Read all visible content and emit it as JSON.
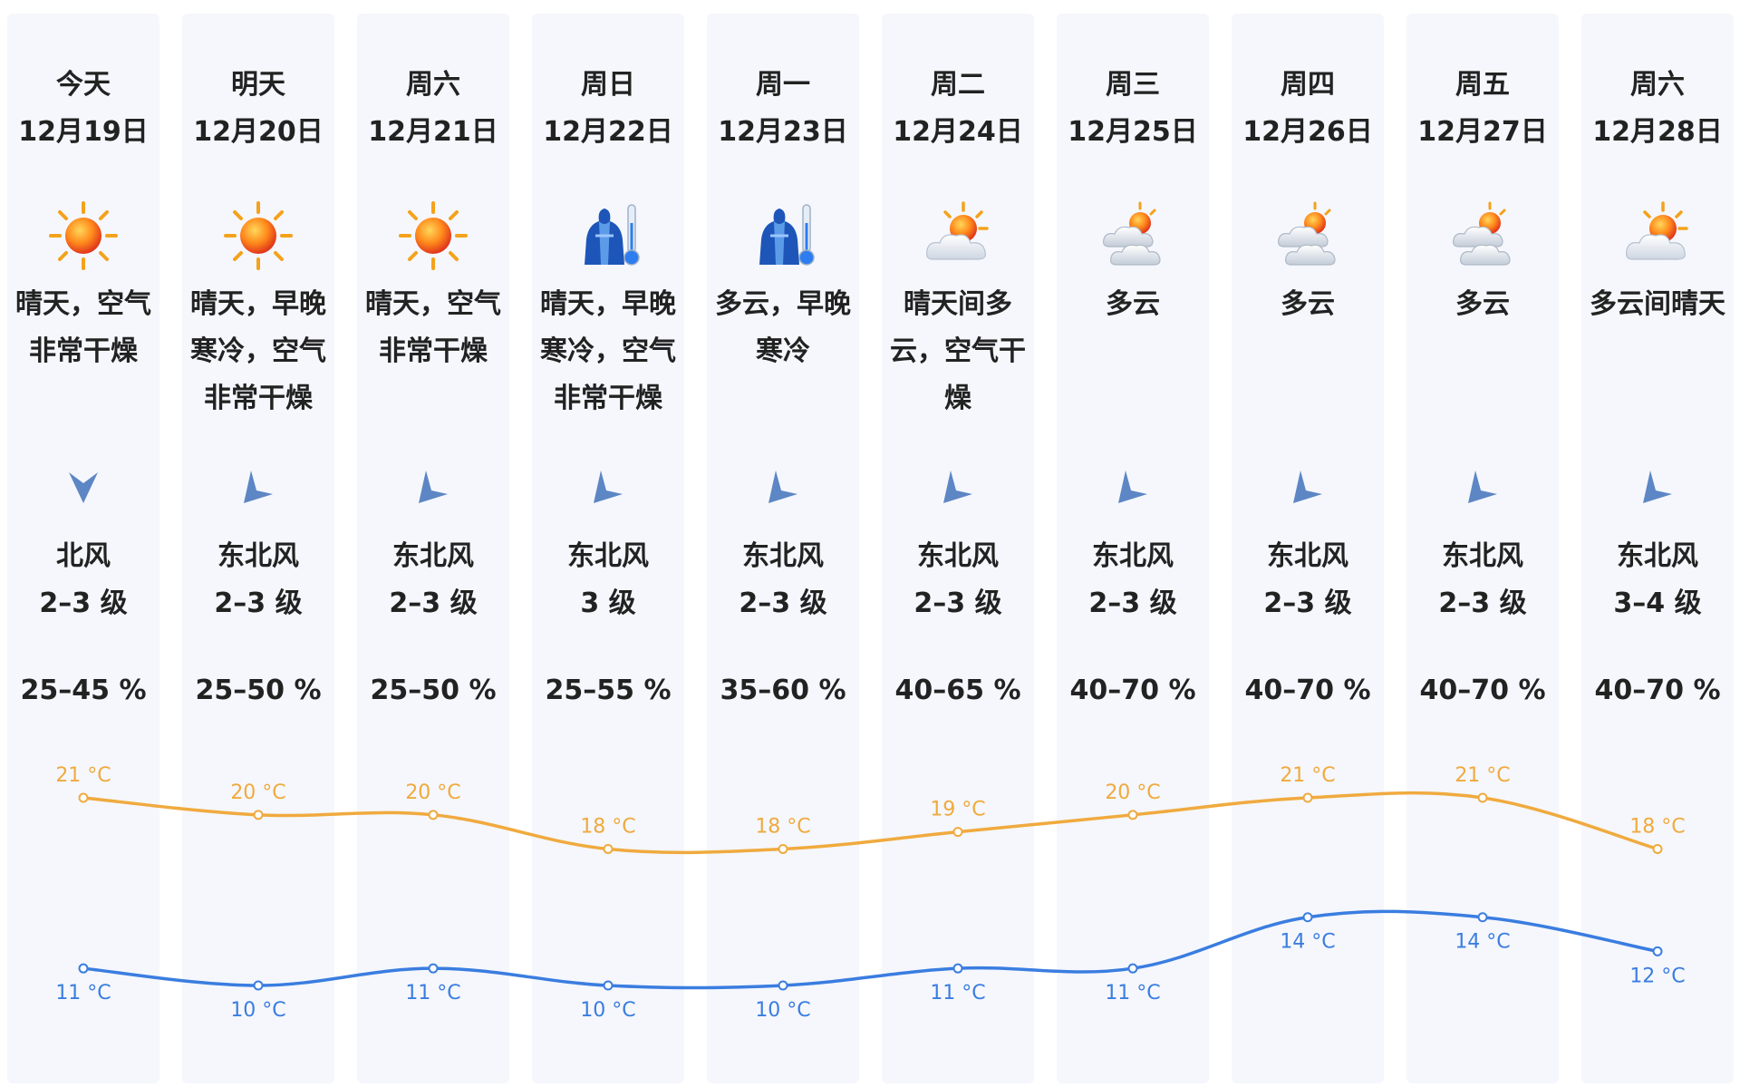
{
  "colors": {
    "high_line": "#f0aa3e",
    "low_line": "#3a7de0",
    "card_bg": "#f5f7fc"
  },
  "days": [
    {
      "name": "今天",
      "date": "12月19日",
      "icon": "sun-icon",
      "condition": "晴天，空气非常干燥",
      "wind_arrow": "north-wind-arrow-icon",
      "wind_dir": "北风",
      "wind_level": "2–3 级",
      "humidity": "25–45 %",
      "high": 21,
      "low": 11,
      "high_label": "21 °C",
      "low_label": "11 °C"
    },
    {
      "name": "明天",
      "date": "12月20日",
      "icon": "sun-icon",
      "condition": "晴天，早晚寒冷，空气非常干燥",
      "wind_arrow": "northeast-wind-arrow-icon",
      "wind_dir": "东北风",
      "wind_level": "2–3 级",
      "humidity": "25–50 %",
      "high": 20,
      "low": 10,
      "high_label": "20 °C",
      "low_label": "10 °C"
    },
    {
      "name": "周六",
      "date": "12月21日",
      "icon": "sun-icon",
      "condition": "晴天，空气非常干燥",
      "wind_arrow": "northeast-wind-arrow-icon",
      "wind_dir": "东北风",
      "wind_level": "2–3 级",
      "humidity": "25–50 %",
      "high": 20,
      "low": 11,
      "high_label": "20 °C",
      "low_label": "11 °C"
    },
    {
      "name": "周日",
      "date": "12月22日",
      "icon": "cold-coat-thermometer-icon",
      "condition": "晴天，早晚寒冷，空气非常干燥",
      "wind_arrow": "northeast-wind-arrow-icon",
      "wind_dir": "东北风",
      "wind_level": "3 级",
      "humidity": "25–55 %",
      "high": 18,
      "low": 10,
      "high_label": "18 °C",
      "low_label": "10 °C"
    },
    {
      "name": "周一",
      "date": "12月23日",
      "icon": "cold-coat-thermometer-icon",
      "condition": "多云，早晚寒冷",
      "wind_arrow": "northeast-wind-arrow-icon",
      "wind_dir": "东北风",
      "wind_level": "2–3 级",
      "humidity": "35–60 %",
      "high": 18,
      "low": 10,
      "high_label": "18 °C",
      "low_label": "10 °C"
    },
    {
      "name": "周二",
      "date": "12月24日",
      "icon": "sun-behind-cloud-icon",
      "condition": "晴天间多云，空气干燥",
      "wind_arrow": "northeast-wind-arrow-icon",
      "wind_dir": "东北风",
      "wind_level": "2–3 级",
      "humidity": "40–65 %",
      "high": 19,
      "low": 11,
      "high_label": "19 °C",
      "low_label": "11 °C"
    },
    {
      "name": "周三",
      "date": "12月25日",
      "icon": "cloudy-icon",
      "condition": "多云",
      "wind_arrow": "northeast-wind-arrow-icon",
      "wind_dir": "东北风",
      "wind_level": "2–3 级",
      "humidity": "40–70 %",
      "high": 20,
      "low": 11,
      "high_label": "20 °C",
      "low_label": "11 °C"
    },
    {
      "name": "周四",
      "date": "12月26日",
      "icon": "cloudy-icon",
      "condition": "多云",
      "wind_arrow": "northeast-wind-arrow-icon",
      "wind_dir": "东北风",
      "wind_level": "2–3 级",
      "humidity": "40–70 %",
      "high": 21,
      "low": 14,
      "high_label": "21 °C",
      "low_label": "14 °C"
    },
    {
      "name": "周五",
      "date": "12月27日",
      "icon": "cloudy-icon",
      "condition": "多云",
      "wind_arrow": "northeast-wind-arrow-icon",
      "wind_dir": "东北风",
      "wind_level": "2–3 级",
      "humidity": "40–70 %",
      "high": 21,
      "low": 14,
      "high_label": "21 °C",
      "low_label": "14 °C"
    },
    {
      "name": "周六",
      "date": "12月28日",
      "icon": "sun-behind-cloud-icon",
      "condition": "多云间晴天",
      "wind_arrow": "northeast-wind-arrow-icon",
      "wind_dir": "东北风",
      "wind_level": "3–4 级",
      "humidity": "40–70 %",
      "high": 18,
      "low": 12,
      "high_label": "18 °C",
      "low_label": "12 °C"
    }
  ]
}
